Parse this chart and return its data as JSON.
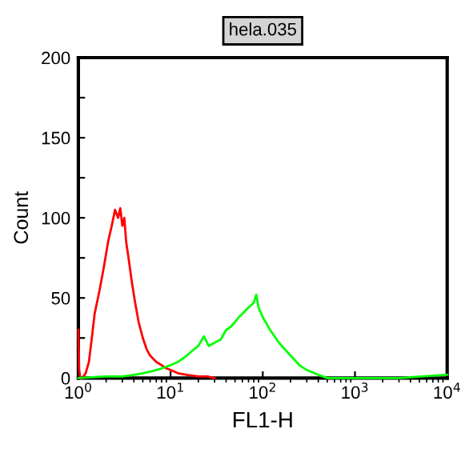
{
  "chart_data": {
    "type": "line",
    "title": "hela.035",
    "xlabel": "FL1-H",
    "ylabel": "Count",
    "log": "x",
    "xlim": [
      1,
      10000
    ],
    "xticks": [
      {
        "value": 1,
        "label": "10$^{0}$"
      },
      {
        "value": 10,
        "label": "10$^{1}$"
      },
      {
        "value": 100,
        "label": "10$^{2}$"
      },
      {
        "value": 1000,
        "label": "10$^{3}$"
      },
      {
        "value": 10000,
        "label": "10$^{4}$"
      }
    ],
    "ylim": [
      0,
      200
    ],
    "yticks": [
      0,
      {
        "value": 25,
        "label": null
      },
      50,
      {
        "value": 75,
        "label": null
      },
      100,
      {
        "value": 125,
        "label": null
      },
      150,
      {
        "value": 175,
        "label": null
      },
      200
    ],
    "grid": false,
    "legend": false,
    "series": [
      {
        "color": "#ff0000",
        "x": [
          1.0,
          1.02,
          1.05,
          1.1,
          1.2,
          1.3,
          1.4,
          1.5,
          1.7,
          1.9,
          2.1,
          2.3,
          2.5,
          2.7,
          2.85,
          3.0,
          3.15,
          3.3,
          3.5,
          3.8,
          4.1,
          4.5,
          5.0,
          5.5,
          6.0,
          7.0,
          8.0,
          9.0,
          10,
          12,
          15,
          20,
          25,
          30
        ],
        "values": [
          30,
          5,
          0,
          0,
          3,
          10,
          25,
          40,
          55,
          70,
          85,
          95,
          105,
          100,
          106,
          95,
          100,
          85,
          75,
          60,
          48,
          35,
          25,
          18,
          14,
          10,
          8,
          6,
          5,
          3,
          2,
          1,
          1,
          0
        ]
      },
      {
        "color": "#00ff00",
        "x": [
          1.0,
          2,
          3,
          4,
          5,
          6,
          7,
          8,
          10,
          12,
          15,
          18,
          20,
          23,
          26,
          30,
          35,
          40,
          45,
          50,
          55,
          60,
          70,
          80,
          85,
          90,
          100,
          120,
          150,
          200,
          250,
          300,
          400,
          500,
          700,
          1000,
          3000,
          10000
        ],
        "values": [
          0,
          1,
          1,
          2,
          3,
          4,
          5,
          6,
          8,
          10,
          14,
          18,
          20,
          26,
          20,
          22,
          24,
          30,
          32,
          35,
          38,
          40,
          44,
          47,
          52,
          44,
          38,
          30,
          22,
          14,
          8,
          5,
          2,
          0,
          0,
          0,
          0,
          2
        ]
      }
    ]
  }
}
